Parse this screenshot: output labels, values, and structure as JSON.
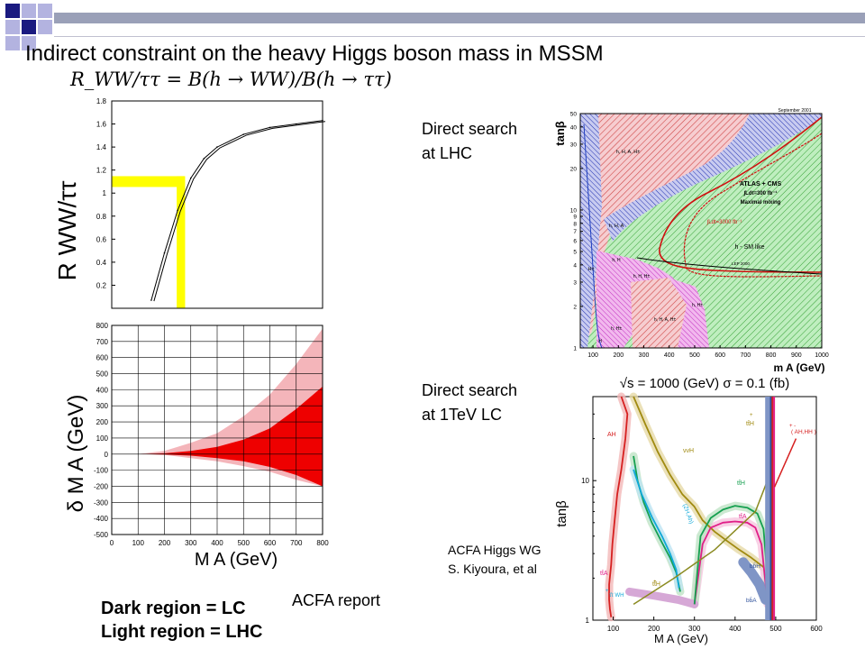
{
  "slide": {
    "title": "Indirect constraint on the heavy Higgs boson mass in MSSM",
    "formula": "R_WW/ττ = B(h → WW)/B(h → ττ)",
    "labels": {
      "lhc_line1": "Direct search",
      "lhc_line2": "at LHC",
      "lc_line1": "Direct search",
      "lc_line2": "at 1TeV LC",
      "acfa_wg_line1": "ACFA Higgs WG",
      "acfa_wg_line2": "S. Kiyoura, et al",
      "acfa_report": "ACFA report",
      "legend_dark": "Dark region = LC",
      "legend_light": "Light region = LHC"
    },
    "colors": {
      "accent_dark": "#1a1a80",
      "accent_light": "#b3b3e0",
      "highlight": "#ffff00"
    }
  },
  "chart_data": [
    {
      "type": "line",
      "ylabel": "R WW/ττ",
      "y_ticks": [
        "0.2",
        "0.4",
        "0.6",
        "0.8",
        "1",
        "1.2",
        "1.4",
        "1.6",
        "1.8"
      ],
      "ylim": [
        0,
        1.8
      ],
      "xlim": [
        0,
        800
      ],
      "x": [
        150,
        200,
        250,
        300,
        350,
        400,
        500,
        600,
        700,
        800
      ],
      "series": [
        {
          "values": [
            0.07,
            0.48,
            0.85,
            1.13,
            1.3,
            1.4,
            1.51,
            1.57,
            1.6,
            1.63
          ]
        }
      ],
      "highlight": {
        "y": 1.1,
        "x": 250,
        "x_upper": 275,
        "color": "#ffff00"
      }
    },
    {
      "type": "area",
      "ylabel": "δ M A (GeV)",
      "xlabel": "M A (GeV)",
      "x_ticks": [
        "0",
        "100",
        "200",
        "300",
        "400",
        "500",
        "600",
        "700",
        "800"
      ],
      "y_ticks": [
        "-500",
        "-400",
        "-300",
        "-200",
        "-100",
        "0",
        "100",
        "200",
        "300",
        "400",
        "500",
        "600",
        "700",
        "800"
      ],
      "xlim": [
        0,
        800
      ],
      "ylim": [
        -500,
        800
      ],
      "grid": true,
      "x": [
        100,
        200,
        300,
        400,
        500,
        600,
        700,
        800
      ],
      "series": [
        {
          "name": "Light region = LHC",
          "color": "#f4b5ba",
          "upper": [
            0,
            20,
            70,
            130,
            235,
            370,
            560,
            780
          ],
          "lower": [
            0,
            -5,
            -25,
            -45,
            -75,
            -110,
            -160,
            -200
          ]
        },
        {
          "name": "Dark region = LC",
          "color": "#ee0000",
          "upper": [
            0,
            5,
            20,
            45,
            90,
            160,
            280,
            420
          ],
          "lower": [
            0,
            -3,
            -10,
            -25,
            -45,
            -80,
            -130,
            -200
          ]
        }
      ]
    },
    {
      "type": "area",
      "title": "",
      "xlabel": "m A (GeV)",
      "ylabel": "tanβ",
      "x_ticks": [
        "100",
        "200",
        "300",
        "400",
        "500",
        "600",
        "700",
        "800",
        "900",
        "1000"
      ],
      "y_ticks": [
        "1",
        "2",
        "3",
        "4",
        "5",
        "6",
        "7",
        "8",
        "9",
        "10",
        "20",
        "30",
        "40",
        "50"
      ],
      "xlim": [
        50,
        1000
      ],
      "ylim": [
        1,
        50
      ],
      "y_scale": "log",
      "corner_note": "September 2001",
      "annotations": [
        "h, H, A, H±",
        "ATLAS + CMS",
        "∫Ldt=300 fb⁻¹",
        "Maximal mixing",
        "∫Ldt=3000 fb⁻¹",
        "h - SM like",
        "h, H, A",
        "h, H",
        "h, H, H±",
        "H±",
        "LEP 2000",
        "h, H±",
        "h, H, A, H±",
        "h, H±",
        "H"
      ]
    },
    {
      "type": "line",
      "title": "√s = 1000 (GeV)   σ = 0.1 (fb)",
      "xlabel": "M A (GeV)",
      "ylabel": "tanβ",
      "x_ticks": [
        "100",
        "200",
        "300",
        "400",
        "500",
        "600"
      ],
      "y_ticks": [
        "1",
        "10"
      ],
      "xlim": [
        50,
        600
      ],
      "ylim": [
        1,
        40
      ],
      "y_scale": "log",
      "annotations": [
        "AH",
        "tt̄H",
        "( AH,HH )",
        "ννH",
        "tt̄H",
        "(ZH,Ah)",
        "tt̄A",
        "tt̄A",
        "tt̄H",
        "bb̄H",
        "τ̄τ WH",
        "bb̄A",
        "+",
        "+",
        "+",
        "+ -"
      ],
      "series": [
        {
          "name": "AH",
          "color": "#d62020",
          "x": [
            120,
            135,
            130,
            120,
            110,
            103,
            98,
            95,
            90,
            90,
            92,
            95
          ],
          "y": [
            40,
            30,
            20,
            12,
            8,
            5,
            3.5,
            2.5,
            1.8,
            1.4,
            1.2,
            1.05
          ]
        },
        {
          "name": "tt̄H",
          "color": "#a08a10",
          "x": [
            150,
            180,
            210,
            240,
            270,
            300,
            320,
            350,
            380,
            410,
            440,
            470
          ],
          "y": [
            40,
            25,
            16,
            11,
            8,
            6.5,
            5.2,
            4.3,
            3.7,
            3.2,
            2.8,
            2.4
          ]
        },
        {
          "name": "ZH,Ah",
          "color": "#16a050",
          "x": [
            150,
            160,
            175,
            195,
            220,
            240,
            255,
            265
          ],
          "y": [
            15,
            10,
            7,
            5,
            3.6,
            2.8,
            2.2,
            1.6
          ]
        },
        {
          "name": "ZH,Ah",
          "color": "#0fa8d8",
          "x": [
            150,
            170,
            195,
            220,
            240,
            255,
            262
          ],
          "y": [
            12,
            8,
            5.5,
            4,
            3,
            2.3,
            1.7
          ]
        },
        {
          "name": "tt̄A",
          "color": "#e01f88",
          "x": [
            300,
            320,
            340,
            370,
            400,
            430,
            450,
            465,
            480
          ],
          "y": [
            1.3,
            3.5,
            4.6,
            5.0,
            5.1,
            5.0,
            4.6,
            3.5,
            1.3
          ]
        },
        {
          "name": "tt̄H",
          "color": "#16a050",
          "x": [
            300,
            315,
            340,
            370,
            400,
            430,
            455,
            470,
            485
          ],
          "y": [
            1.3,
            4.0,
            5.4,
            6.2,
            6.6,
            6.4,
            5.8,
            4.5,
            1.3
          ]
        }
      ]
    }
  ]
}
